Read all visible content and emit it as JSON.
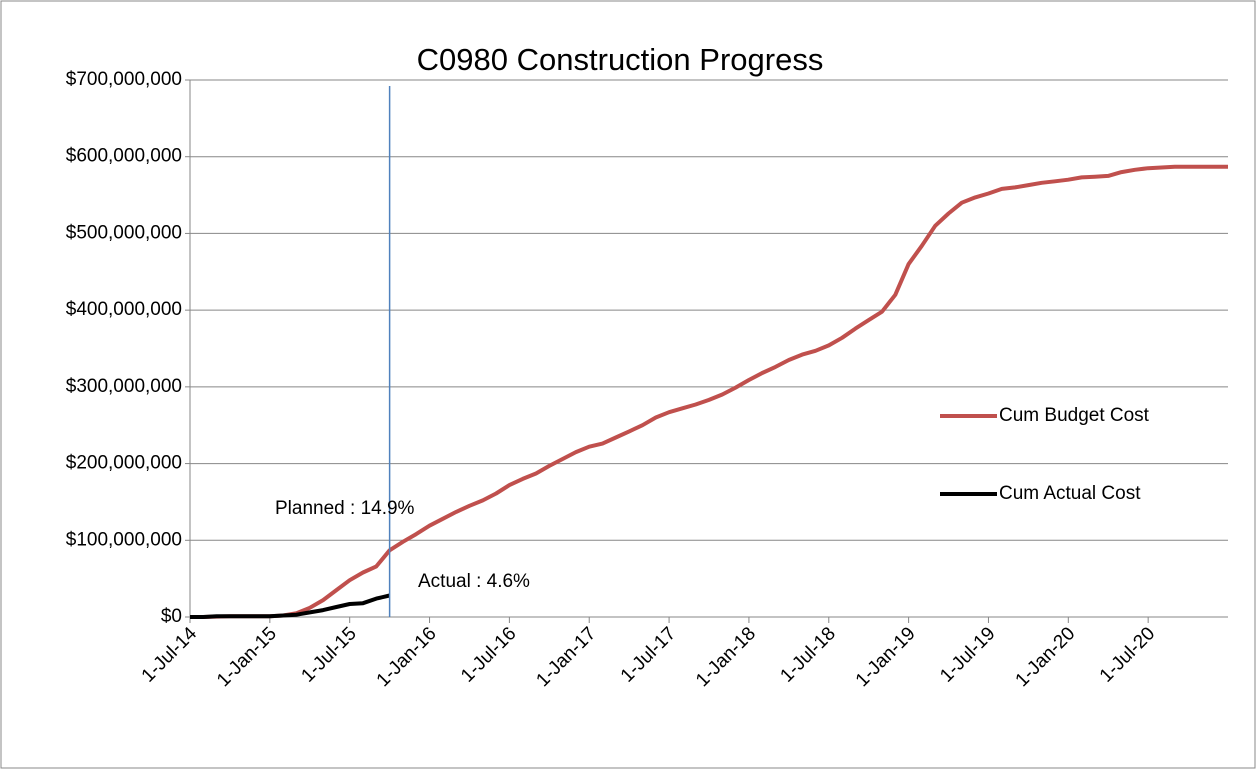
{
  "chart_data": {
    "type": "line",
    "title": "C0980 Construction Progress",
    "categories": [
      "1-Jul-14",
      null,
      null,
      null,
      null,
      null,
      "1-Jan-15",
      null,
      null,
      null,
      null,
      null,
      "1-Jul-15",
      null,
      null,
      null,
      null,
      null,
      "1-Jan-16",
      null,
      null,
      null,
      null,
      null,
      "1-Jul-16",
      null,
      null,
      null,
      null,
      null,
      "1-Jan-17",
      null,
      null,
      null,
      null,
      null,
      "1-Jul-17",
      null,
      null,
      null,
      null,
      null,
      "1-Jan-18",
      null,
      null,
      null,
      null,
      null,
      "1-Jul-18",
      null,
      null,
      null,
      null,
      null,
      "1-Jan-19",
      null,
      null,
      null,
      null,
      null,
      "1-Jul-19",
      null,
      null,
      null,
      null,
      null,
      "1-Jan-20",
      null,
      null,
      null,
      null,
      null,
      "1-Jul-20",
      null,
      null,
      null,
      null,
      null,
      null
    ],
    "series": [
      {
        "name": "Cum Budget Cost",
        "color": "#c0504d",
        "values": [
          0,
          0,
          500000,
          1000000,
          1000000,
          1000000,
          1000000,
          2000000,
          5000000,
          12000000,
          22000000,
          35000000,
          48000000,
          58000000,
          66000000,
          87000000,
          98000000,
          108000000,
          119000000,
          128000000,
          137000000,
          145000000,
          152000000,
          161000000,
          172000000,
          180000000,
          187000000,
          197000000,
          206000000,
          215000000,
          222000000,
          226000000,
          234000000,
          242000000,
          250000000,
          260000000,
          267000000,
          272000000,
          277000000,
          283000000,
          290000000,
          299000000,
          309000000,
          318000000,
          326000000,
          335000000,
          342000000,
          347000000,
          354000000,
          364000000,
          376000000,
          387000000,
          398000000,
          420000000,
          460000000,
          484000000,
          510000000,
          526000000,
          540000000,
          547000000,
          552000000,
          558000000,
          560000000,
          563000000,
          566000000,
          568000000,
          570000000,
          573000000,
          574000000,
          575000000,
          580000000,
          583000000,
          585000000,
          586000000,
          587000000,
          587000000,
          587000000,
          587000000,
          587000000
        ]
      },
      {
        "name": "Cum Actual Cost",
        "color": "#000000",
        "values": [
          0,
          0,
          1000000,
          1000000,
          1000000,
          1000000,
          1000000,
          2000000,
          3000000,
          6000000,
          9000000,
          13000000,
          17000000,
          18000000,
          24000000,
          28000000,
          null,
          null,
          null,
          null,
          null,
          null,
          null,
          null,
          null,
          null,
          null,
          null,
          null,
          null,
          null,
          null,
          null,
          null,
          null,
          null,
          null,
          null,
          null,
          null,
          null,
          null,
          null,
          null,
          null,
          null,
          null,
          null,
          null,
          null,
          null,
          null,
          null,
          null,
          null,
          null,
          null,
          null,
          null,
          null,
          null,
          null,
          null,
          null,
          null,
          null,
          null,
          null,
          null,
          null,
          null,
          null,
          null,
          null,
          null,
          null,
          null,
          null,
          null
        ]
      }
    ],
    "ylim": [
      0,
      700000000
    ],
    "yticks": [
      {
        "value": 0,
        "label": "$0"
      },
      {
        "value": 100000000,
        "label": "$100,000,000"
      },
      {
        "value": 200000000,
        "label": "$200,000,000"
      },
      {
        "value": 300000000,
        "label": "$300,000,000"
      },
      {
        "value": 400000000,
        "label": "$400,000,000"
      },
      {
        "value": 500000000,
        "label": "$500,000,000"
      },
      {
        "value": 600000000,
        "label": "$600,000,000"
      },
      {
        "value": 700000000,
        "label": "$700,000,000"
      }
    ],
    "grid": true,
    "legend": "right",
    "marker_color": "#4f81bd",
    "annotations": [
      "Planned : 14.9%",
      "Actual : 4.6%"
    ]
  }
}
